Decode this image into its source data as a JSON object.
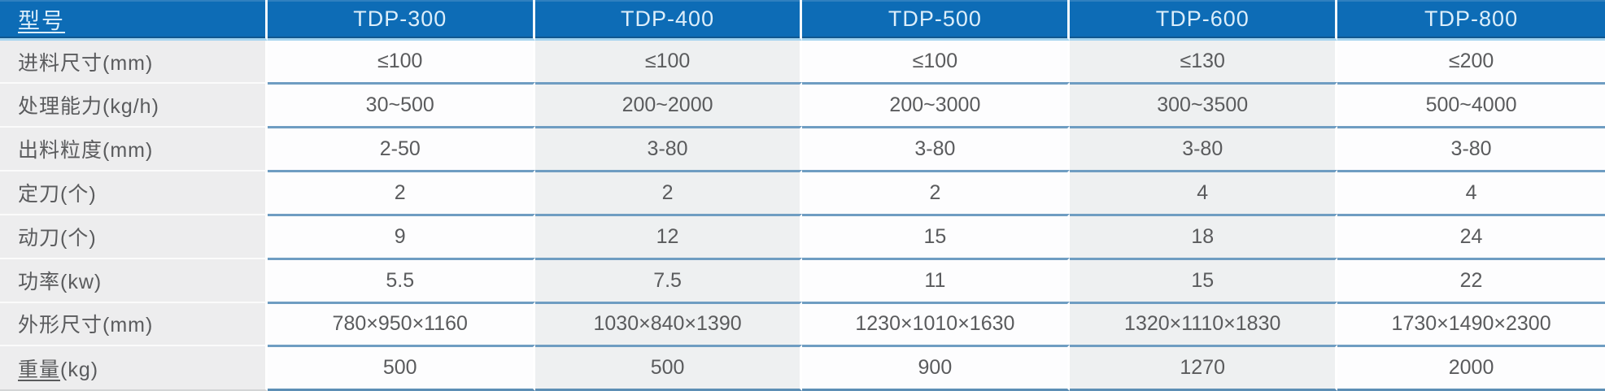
{
  "table": {
    "header": {
      "label": "型号",
      "columns": [
        "TDP-300",
        "TDP-400",
        "TDP-500",
        "TDP-600",
        "TDP-800"
      ]
    },
    "rows": [
      {
        "label": "进料尺寸(mm)",
        "values": [
          "≤100",
          "≤100",
          "≤100",
          "≤130",
          "≤200"
        ]
      },
      {
        "label": "处理能力(kg/h)",
        "values": [
          "30~500",
          "200~2000",
          "200~3000",
          "300~3500",
          "500~4000"
        ]
      },
      {
        "label": "出料粒度(mm)",
        "values": [
          "2-50",
          "3-80",
          "3-80",
          "3-80",
          "3-80"
        ]
      },
      {
        "label": "定刀(个)",
        "values": [
          "2",
          "2",
          "2",
          "4",
          "4"
        ]
      },
      {
        "label": "动刀(个)",
        "values": [
          "9",
          "12",
          "15",
          "18",
          "24"
        ]
      },
      {
        "label": "功率(kw)",
        "values": [
          "5.5",
          "7.5",
          "11",
          "15",
          "22"
        ]
      },
      {
        "label": "外形尺寸(mm)",
        "values": [
          "780×950×1160",
          "1030×840×1390",
          "1230×1010×1630",
          "1320×1110×1830",
          "1730×1490×2300"
        ]
      },
      {
        "label_zh": "重量",
        "label_unit": "(kg)",
        "values": [
          "500",
          "500",
          "900",
          "1270",
          "2000"
        ]
      }
    ]
  },
  "colors": {
    "header_bg": "#0d6cb6",
    "header_text": "#dceefa",
    "header_underline_band": "#a5d4ef",
    "row_separator_blue": "#6f9dc2",
    "label_column_bg": "#ededee",
    "grey_column_bg": "#eef0f1",
    "white_column_bg": "#fdfdfe",
    "body_text": "#5a5b5d"
  }
}
